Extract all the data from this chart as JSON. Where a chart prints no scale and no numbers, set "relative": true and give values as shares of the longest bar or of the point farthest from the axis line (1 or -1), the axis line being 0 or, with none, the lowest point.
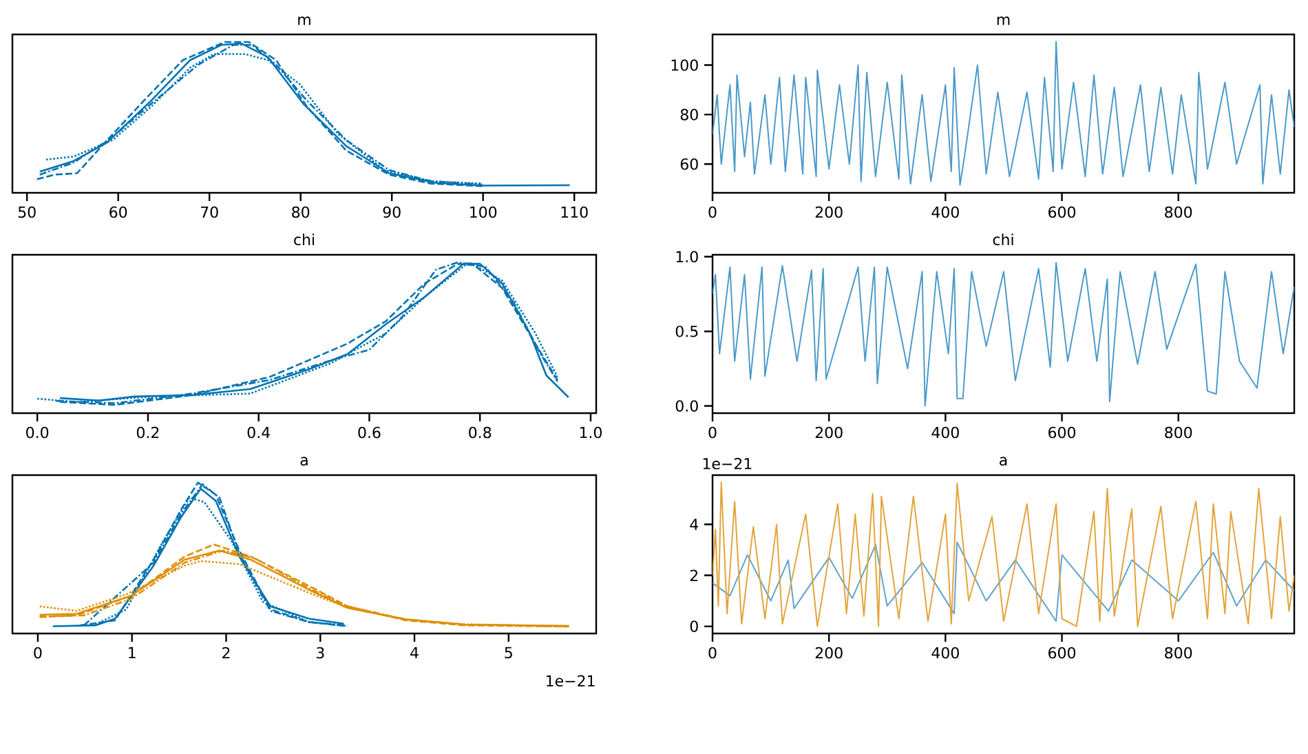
{
  "chart_data": [
    {
      "type": "line",
      "title": "m",
      "relative": true,
      "tick_labels": "x",
      "xlim": [
        48.4,
        112.4
      ],
      "xticks": [
        50,
        60,
        70,
        80,
        90,
        100,
        110
      ],
      "series": [
        {
          "color": "#0173b2",
          "line_style": "solid",
          "x": [
            51.4,
            55.1,
            58.7,
            63.6,
            67.9,
            71.3,
            73.5,
            76.4,
            80.3,
            85,
            89.7,
            94.8,
            99.9,
            109.5
          ],
          "values": [
            0.14,
            0.21,
            0.33,
            0.61,
            0.88,
            0.98,
            0.99,
            0.9,
            0.59,
            0.31,
            0.13,
            0.066,
            0.048,
            0.05
          ]
        },
        {
          "color": "#0173b2",
          "line_style": "dashed",
          "x": [
            51.1,
            53,
            55.5,
            58.5,
            62.8,
            67.1,
            71.7,
            74.3,
            77.3,
            80.7,
            85,
            89.7,
            94.3,
            99.9
          ],
          "values": [
            0.09,
            0.12,
            0.13,
            0.33,
            0.61,
            0.88,
            1.0,
            1.0,
            0.88,
            0.57,
            0.28,
            0.12,
            0.061,
            0.044
          ]
        },
        {
          "color": "#0173b2",
          "line_style": "dashdot",
          "x": [
            51.4,
            55.1,
            59.4,
            63.6,
            68.8,
            72.6,
            74.7,
            77.3,
            80.7,
            85,
            89.7,
            94.3,
            99.9
          ],
          "values": [
            0.12,
            0.2,
            0.37,
            0.59,
            0.85,
            0.98,
            0.98,
            0.85,
            0.61,
            0.35,
            0.15,
            0.077,
            0.055
          ]
        },
        {
          "color": "#0173b2",
          "line_style": "dotted",
          "x": [
            52.1,
            55.1,
            59.4,
            63.6,
            67.9,
            70.5,
            73.9,
            76.4,
            79.9,
            84.1,
            89.2,
            94.3,
            99.9
          ],
          "values": [
            0.22,
            0.24,
            0.35,
            0.57,
            0.83,
            0.92,
            0.92,
            0.88,
            0.72,
            0.39,
            0.15,
            0.077,
            0.061
          ]
        }
      ]
    },
    {
      "type": "line",
      "title": "m",
      "xlim": [
        0,
        999
      ],
      "xticks": [
        0,
        200,
        400,
        600,
        800
      ],
      "ylim": [
        48.4,
        112.4
      ],
      "yticks": [
        60,
        80,
        100
      ],
      "series": [
        {
          "color": "#4a9acb",
          "x": [
            0,
            8,
            15,
            30,
            38,
            42,
            55,
            65,
            72,
            90,
            100,
            115,
            125,
            140,
            155,
            160,
            178,
            180,
            200,
            218,
            235,
            250,
            255,
            265,
            280,
            300,
            320,
            325,
            340,
            360,
            375,
            400,
            410,
            415,
            425,
            432,
            455,
            470,
            490,
            510,
            540,
            560,
            570,
            585,
            590,
            600,
            620,
            640,
            655,
            670,
            690,
            705,
            735,
            750,
            770,
            790,
            805,
            830,
            835,
            850,
            880,
            900,
            940,
            945,
            960,
            975,
            990,
            999
          ],
          "values": [
            72,
            88,
            60,
            92,
            57,
            96,
            63,
            85,
            56,
            88,
            60,
            95,
            57,
            96,
            56,
            95,
            55,
            98,
            58,
            92,
            60,
            100,
            53,
            97,
            55,
            93,
            54,
            96,
            52,
            88,
            53,
            92,
            57,
            99,
            51.5,
            62,
            100,
            56,
            89,
            55,
            89,
            54,
            95,
            57,
            109.5,
            58,
            93,
            55,
            96,
            56,
            91,
            55,
            92,
            57,
            91,
            56,
            88,
            52,
            97,
            58,
            93,
            60,
            92,
            52,
            88,
            56,
            90,
            75
          ]
        }
      ]
    },
    {
      "type": "line",
      "title": "chi",
      "relative": true,
      "tick_labels": "x",
      "xlim": [
        -0.045,
        1.01
      ],
      "xticks": [
        {
          "value": 0,
          "label": "0.0"
        },
        0.2,
        0.4,
        0.6,
        0.8,
        {
          "value": 1,
          "label": "1.0"
        }
      ],
      "series": [
        {
          "color": "#0173b2",
          "line_style": "solid",
          "x": [
            0.041,
            0.112,
            0.175,
            0.28,
            0.385,
            0.49,
            0.56,
            0.63,
            0.7,
            0.77,
            0.8,
            0.84,
            0.89,
            0.92,
            0.96
          ],
          "values": [
            0.1,
            0.083,
            0.11,
            0.12,
            0.16,
            0.29,
            0.39,
            0.59,
            0.77,
            0.99,
            0.99,
            0.86,
            0.53,
            0.25,
            0.105
          ]
        },
        {
          "color": "#0173b2",
          "line_style": "dashed",
          "x": [
            0.041,
            0.14,
            0.28,
            0.42,
            0.56,
            0.63,
            0.7,
            0.76,
            0.79,
            0.84,
            0.9,
            0.94
          ],
          "values": [
            0.074,
            0.055,
            0.12,
            0.24,
            0.46,
            0.61,
            0.86,
            0.99,
            0.98,
            0.83,
            0.46,
            0.22
          ]
        },
        {
          "color": "#0173b2",
          "line_style": "dashdot",
          "x": [
            0.034,
            0.14,
            0.28,
            0.42,
            0.53,
            0.6,
            0.66,
            0.72,
            0.76,
            0.81,
            0.86,
            0.91,
            0.94
          ],
          "values": [
            0.081,
            0.066,
            0.13,
            0.22,
            0.35,
            0.42,
            0.64,
            0.95,
            1.0,
            0.97,
            0.74,
            0.39,
            0.21
          ]
        },
        {
          "color": "#0173b2",
          "line_style": "dotted",
          "x": [
            0.0,
            0.069,
            0.21,
            0.385,
            0.53,
            0.63,
            0.7,
            0.78,
            0.84,
            0.9,
            0.94
          ],
          "values": [
            0.096,
            0.074,
            0.11,
            0.13,
            0.33,
            0.53,
            0.77,
            1.0,
            0.88,
            0.53,
            0.24
          ]
        }
      ]
    },
    {
      "type": "line",
      "title": "chi",
      "xlim": [
        0,
        999
      ],
      "xticks": [
        0,
        200,
        400,
        600,
        800
      ],
      "ylim": [
        -0.048,
        1.013
      ],
      "yticks": [
        {
          "value": 0,
          "label": "0.0"
        },
        0.5,
        {
          "value": 1,
          "label": "1.0"
        }
      ],
      "series": [
        {
          "color": "#4a9acb",
          "x": [
            0,
            5,
            12,
            30,
            38,
            55,
            65,
            85,
            90,
            120,
            145,
            170,
            178,
            190,
            195,
            250,
            262,
            278,
            283,
            300,
            335,
            360,
            365,
            385,
            405,
            415,
            420,
            430,
            445,
            470,
            500,
            520,
            560,
            580,
            590,
            610,
            640,
            660,
            678,
            682,
            700,
            730,
            760,
            780,
            830,
            850,
            865,
            880,
            905,
            935,
            960,
            980,
            999
          ],
          "values": [
            0.75,
            0.88,
            0.35,
            0.93,
            0.3,
            0.88,
            0.18,
            0.93,
            0.2,
            0.94,
            0.3,
            0.91,
            0.17,
            0.92,
            0.18,
            0.93,
            0.3,
            0.93,
            0.15,
            0.93,
            0.25,
            0.9,
            0.0,
            0.9,
            0.35,
            0.92,
            0.05,
            0.05,
            0.9,
            0.4,
            0.9,
            0.17,
            0.92,
            0.26,
            0.96,
            0.3,
            0.92,
            0.3,
            0.85,
            0.03,
            0.9,
            0.28,
            0.9,
            0.38,
            0.95,
            0.1,
            0.08,
            0.9,
            0.3,
            0.12,
            0.9,
            0.35,
            0.8
          ]
        }
      ]
    },
    {
      "type": "line",
      "title": "a",
      "relative": true,
      "tick_labels": "x",
      "xlim": [
        -0.27,
        5.93
      ],
      "xticks": [
        0,
        1,
        2,
        3,
        4,
        5
      ],
      "annotations": [
        "1e−21"
      ],
      "series": [
        {
          "color": "#0173b2",
          "line_style": "solid",
          "x": [
            0.16,
            0.61,
            0.82,
            1.23,
            1.52,
            1.73,
            1.89,
            2.14,
            2.47,
            2.88,
            3.25
          ],
          "values": [
            0.048,
            0.054,
            0.098,
            0.45,
            0.77,
            0.96,
            0.88,
            0.51,
            0.18,
            0.098,
            0.065
          ]
        },
        {
          "color": "#0173b2",
          "line_style": "dashed",
          "x": [
            0.45,
            0.82,
            1.23,
            1.52,
            1.7,
            1.89,
            2.14,
            2.47,
            2.88,
            3.25
          ],
          "values": [
            0.054,
            0.087,
            0.49,
            0.82,
            1.0,
            0.92,
            0.55,
            0.16,
            0.076,
            0.05
          ]
        },
        {
          "color": "#0173b2",
          "line_style": "dashdot",
          "x": [
            0.49,
            1.23,
            1.52,
            1.75,
            1.93,
            2.14,
            2.47,
            2.88,
            3.27
          ],
          "values": [
            0.054,
            0.47,
            0.79,
            0.99,
            0.9,
            0.53,
            0.15,
            0.076,
            0.054
          ]
        },
        {
          "color": "#0173b2",
          "line_style": "dotted",
          "x": [
            0.61,
            0.94,
            1.32,
            1.61,
            1.77,
            2.06,
            2.39,
            2.88,
            3.29
          ],
          "values": [
            0.059,
            0.16,
            0.6,
            0.9,
            0.87,
            0.61,
            0.21,
            0.076,
            0.05
          ]
        },
        {
          "color": "#de8f05",
          "line_style": "solid",
          "x": [
            0.02,
            0.41,
            0.99,
            1.56,
            1.93,
            2.26,
            2.88,
            3.29,
            3.91,
            4.53,
            5.64
          ],
          "values": [
            0.124,
            0.13,
            0.25,
            0.49,
            0.55,
            0.49,
            0.29,
            0.17,
            0.093,
            0.059,
            0.05
          ]
        },
        {
          "color": "#de8f05",
          "line_style": "dashed",
          "x": [
            0.02,
            0.41,
            0.99,
            1.56,
            1.87,
            2.26,
            2.96,
            3.29,
            3.91,
            4.53,
            5.64
          ],
          "values": [
            0.109,
            0.12,
            0.25,
            0.51,
            0.59,
            0.51,
            0.29,
            0.18,
            0.087,
            0.054,
            0.046
          ]
        },
        {
          "color": "#de8f05",
          "line_style": "dashdot",
          "x": [
            0.02,
            0.49,
            0.99,
            1.56,
            1.97,
            2.3,
            2.88,
            3.29,
            3.91,
            4.53,
            5.6
          ],
          "values": [
            0.113,
            0.12,
            0.23,
            0.47,
            0.55,
            0.5,
            0.3,
            0.18,
            0.093,
            0.059,
            0.046
          ]
        },
        {
          "color": "#de8f05",
          "line_style": "dotted",
          "x": [
            0.02,
            0.41,
            0.94,
            1.56,
            1.73,
            2.14,
            2.88,
            3.29,
            3.91,
            4.53,
            5.64
          ],
          "values": [
            0.18,
            0.15,
            0.26,
            0.45,
            0.48,
            0.46,
            0.27,
            0.17,
            0.093,
            0.061,
            0.05
          ]
        }
      ]
    },
    {
      "type": "line",
      "title": "a",
      "xlim": [
        0,
        999
      ],
      "xticks": [
        0,
        200,
        400,
        600,
        800
      ],
      "ylim": [
        -0.28,
        5.93
      ],
      "yticks": [
        0,
        2,
        4
      ],
      "annotations": [
        "1e−21"
      ],
      "series": [
        {
          "color": "#5fa3cf",
          "x": [
            0,
            30,
            60,
            100,
            130,
            140,
            200,
            240,
            280,
            300,
            360,
            415,
            420,
            470,
            520,
            590,
            600,
            680,
            720,
            800,
            860,
            900,
            950,
            999
          ],
          "values": [
            1.7,
            1.2,
            2.8,
            1.0,
            2.6,
            0.7,
            2.7,
            1.1,
            3.2,
            0.8,
            2.5,
            0.5,
            3.3,
            1.0,
            2.6,
            0.2,
            2.8,
            0.6,
            2.6,
            1.0,
            2.9,
            0.8,
            2.6,
            1.4
          ]
        },
        {
          "color": "#e3a43a",
          "x": [
            0,
            5,
            10,
            15,
            25,
            38,
            50,
            70,
            90,
            110,
            120,
            160,
            180,
            215,
            230,
            245,
            260,
            275,
            285,
            290,
            320,
            345,
            370,
            400,
            410,
            420,
            440,
            480,
            500,
            540,
            560,
            590,
            600,
            625,
            655,
            665,
            678,
            690,
            720,
            730,
            770,
            790,
            830,
            850,
            860,
            880,
            890,
            920,
            938,
            960,
            975,
            990,
            999
          ],
          "values": [
            2.0,
            3.8,
            0.8,
            5.65,
            0.5,
            4.9,
            0.1,
            3.9,
            0.3,
            4.0,
            0.1,
            4.4,
            0.0,
            4.8,
            0.5,
            4.4,
            0.4,
            5.2,
            0.0,
            5.1,
            0.3,
            5.1,
            0.2,
            4.4,
            0.1,
            5.6,
            1.0,
            4.3,
            0.2,
            4.8,
            0.5,
            4.8,
            0.3,
            0.0,
            4.5,
            0.2,
            5.4,
            0.4,
            4.6,
            0.0,
            4.7,
            0.3,
            4.9,
            0.3,
            4.8,
            0.5,
            4.5,
            0.1,
            5.4,
            0.3,
            4.3,
            0.6,
            2.0
          ]
        }
      ]
    }
  ]
}
